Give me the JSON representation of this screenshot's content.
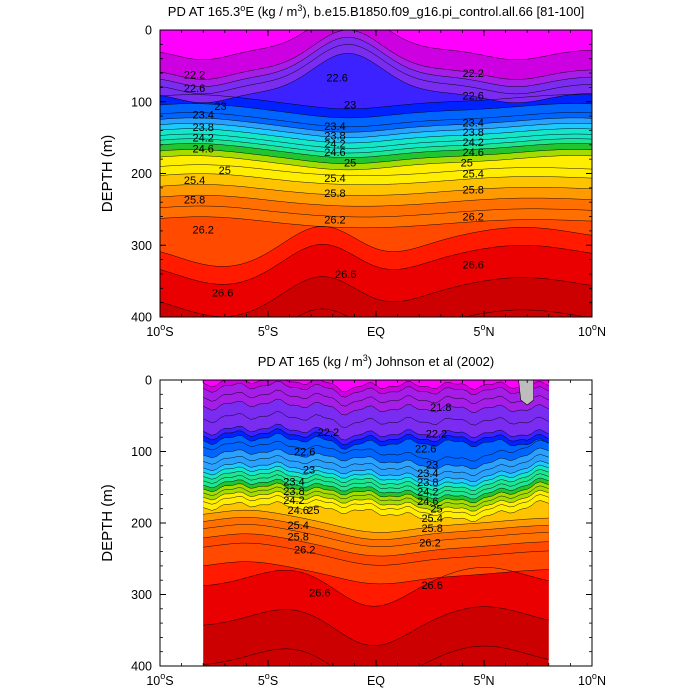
{
  "chart_data": [
    {
      "type": "contour",
      "title_parts": [
        "PD AT 165.3",
        "o",
        "E (kg / m",
        "3",
        "), b.e15.B1850.f09_g16.pi_control.all.66 [81-100]"
      ],
      "ylabel": "DEPTH (m)",
      "xlim": [
        -10,
        10
      ],
      "ylim": [
        0,
        400
      ],
      "y_reversed": true,
      "x_data_range": [
        -10,
        10
      ],
      "x_ticks": [
        -10,
        -5,
        0,
        5,
        10
      ],
      "y_ticks": [
        0,
        100,
        200,
        300,
        400
      ],
      "y_tick_labels": [
        "0",
        "100",
        "200",
        "300",
        "400"
      ],
      "base_depth_profile": [
        [
          21.8,
          0
        ],
        [
          22.2,
          55
        ],
        [
          22.6,
          75
        ],
        [
          23.0,
          100
        ],
        [
          23.4,
          125
        ],
        [
          23.8,
          140
        ],
        [
          24.2,
          155
        ],
        [
          24.6,
          168
        ],
        [
          25.0,
          185
        ],
        [
          25.4,
          210
        ],
        [
          25.8,
          240
        ],
        [
          26.2,
          270
        ],
        [
          26.6,
          320
        ],
        [
          27.0,
          410
        ]
      ],
      "line_values": [
        22.2,
        22.6,
        23.0,
        23.4,
        23.8,
        24.2,
        24.6,
        25.0,
        25.4,
        25.8,
        26.2,
        26.6,
        27.0
      ],
      "contour_labels": [
        {
          "text": "22.2",
          "x": -8.4,
          "y": 62
        },
        {
          "text": "22.6",
          "x": -8.4,
          "y": 81
        },
        {
          "text": "23",
          "x": -7.2,
          "y": 106
        },
        {
          "text": "23.4",
          "x": -8.0,
          "y": 118
        },
        {
          "text": "23.8",
          "x": -8.0,
          "y": 135
        },
        {
          "text": "24.2",
          "x": -8.0,
          "y": 150
        },
        {
          "text": "24.6",
          "x": -8.0,
          "y": 165
        },
        {
          "text": "25",
          "x": -7.0,
          "y": 195
        },
        {
          "text": "25.4",
          "x": -8.4,
          "y": 209
        },
        {
          "text": "25.8",
          "x": -8.4,
          "y": 236
        },
        {
          "text": "26.2",
          "x": -8.0,
          "y": 278
        },
        {
          "text": "22.6",
          "x": -1.8,
          "y": 66
        },
        {
          "text": "23",
          "x": -1.2,
          "y": 104
        },
        {
          "text": "23.4",
          "x": -1.9,
          "y": 134
        },
        {
          "text": "23.8",
          "x": -1.9,
          "y": 147
        },
        {
          "text": "24.2",
          "x": -1.9,
          "y": 158
        },
        {
          "text": "24.6",
          "x": -1.9,
          "y": 170
        },
        {
          "text": "25",
          "x": -1.2,
          "y": 185
        },
        {
          "text": "25.4",
          "x": -1.9,
          "y": 206
        },
        {
          "text": "25.8",
          "x": -1.9,
          "y": 227
        },
        {
          "text": "26.2",
          "x": -1.9,
          "y": 264
        },
        {
          "text": "26.6",
          "x": -1.4,
          "y": 340
        },
        {
          "text": "26.6",
          "x": -7.1,
          "y": 366
        },
        {
          "text": "22.2",
          "x": 4.5,
          "y": 60
        },
        {
          "text": "22.6",
          "x": 4.5,
          "y": 91
        },
        {
          "text": "23.4",
          "x": 4.5,
          "y": 129
        },
        {
          "text": "23.8",
          "x": 4.5,
          "y": 142
        },
        {
          "text": "24.2",
          "x": 4.5,
          "y": 156
        },
        {
          "text": "24.6",
          "x": 4.5,
          "y": 170
        },
        {
          "text": "25",
          "x": 4.2,
          "y": 185
        },
        {
          "text": "25.4",
          "x": 4.5,
          "y": 200
        },
        {
          "text": "25.8",
          "x": 4.5,
          "y": 222
        },
        {
          "text": "26.2",
          "x": 4.5,
          "y": 260
        },
        {
          "text": "26.6",
          "x": 4.5,
          "y": 327
        }
      ]
    },
    {
      "type": "contour",
      "title_parts": [
        "PD AT 165 (kg / m",
        "3",
        ") Johnson et al (2002)"
      ],
      "ylabel": "DEPTH (m)",
      "xlim": [
        -10,
        10
      ],
      "ylim": [
        0,
        400
      ],
      "y_reversed": true,
      "x_data_range": [
        -8,
        8
      ],
      "x_ticks": [
        -10,
        -5,
        0,
        5,
        10
      ],
      "y_ticks": [
        0,
        100,
        200,
        300,
        400
      ],
      "y_tick_labels": [
        "0",
        "100",
        "200",
        "300",
        "400"
      ],
      "base_depth_profile": [
        [
          21.0,
          0
        ],
        [
          21.4,
          15
        ],
        [
          21.8,
          40
        ],
        [
          22.2,
          75
        ],
        [
          22.6,
          88
        ],
        [
          23.0,
          110
        ],
        [
          23.4,
          128
        ],
        [
          23.8,
          140
        ],
        [
          24.2,
          152
        ],
        [
          24.6,
          163
        ],
        [
          25.0,
          175
        ],
        [
          25.4,
          192
        ],
        [
          25.8,
          212
        ],
        [
          26.2,
          238
        ],
        [
          26.6,
          290
        ],
        [
          27.0,
          400
        ]
      ],
      "line_values": [
        21.4,
        21.8,
        22.2,
        22.6,
        23.0,
        23.4,
        23.8,
        24.2,
        24.6,
        25.0,
        25.4,
        25.8,
        26.2,
        26.6,
        27.0
      ],
      "contour_labels": [
        {
          "text": "21.8",
          "x": 3.0,
          "y": 38
        },
        {
          "text": "22.2",
          "x": -2.2,
          "y": 73
        },
        {
          "text": "22.2",
          "x": 2.8,
          "y": 75
        },
        {
          "text": "22.6",
          "x": -3.3,
          "y": 100
        },
        {
          "text": "22.6",
          "x": 2.3,
          "y": 96
        },
        {
          "text": "23",
          "x": -3.1,
          "y": 125
        },
        {
          "text": "23",
          "x": 2.6,
          "y": 118
        },
        {
          "text": "23.4",
          "x": -3.8,
          "y": 142
        },
        {
          "text": "23.8",
          "x": -3.8,
          "y": 155
        },
        {
          "text": "24.2",
          "x": -3.8,
          "y": 168
        },
        {
          "text": "24.6",
          "x": -3.6,
          "y": 182
        },
        {
          "text": "25",
          "x": -2.9,
          "y": 182
        },
        {
          "text": "25.4",
          "x": -3.6,
          "y": 203
        },
        {
          "text": "25.8",
          "x": -3.6,
          "y": 219
        },
        {
          "text": "26.2",
          "x": -3.3,
          "y": 237
        },
        {
          "text": "23.4",
          "x": 2.4,
          "y": 130
        },
        {
          "text": "23.8",
          "x": 2.4,
          "y": 143
        },
        {
          "text": "24.2",
          "x": 2.4,
          "y": 156
        },
        {
          "text": "24.6",
          "x": 2.4,
          "y": 169
        },
        {
          "text": "25",
          "x": 2.8,
          "y": 180
        },
        {
          "text": "25.4",
          "x": 2.6,
          "y": 193
        },
        {
          "text": "25.8",
          "x": 2.6,
          "y": 207
        },
        {
          "text": "26.2",
          "x": 2.5,
          "y": 227
        },
        {
          "text": "26.6",
          "x": -2.6,
          "y": 297
        },
        {
          "text": "26.6",
          "x": 2.6,
          "y": 287
        }
      ]
    }
  ],
  "colors": {
    "levels": [
      "#ff00ff",
      "#cc00e0",
      "#a41ee8",
      "#7a2cf0",
      "#3c22ff",
      "#0022ff",
      "#0064ff",
      "#2aa0ff",
      "#1ccaff",
      "#14e6c8",
      "#1ee690",
      "#22c430",
      "#a4dc00",
      "#ffee00",
      "#ffc400",
      "#ff9a00",
      "#ff7000",
      "#ff4a00",
      "#ff1a00",
      "#ea0000",
      "#cc0000"
    ],
    "nodata": "#bdbdbd"
  }
}
